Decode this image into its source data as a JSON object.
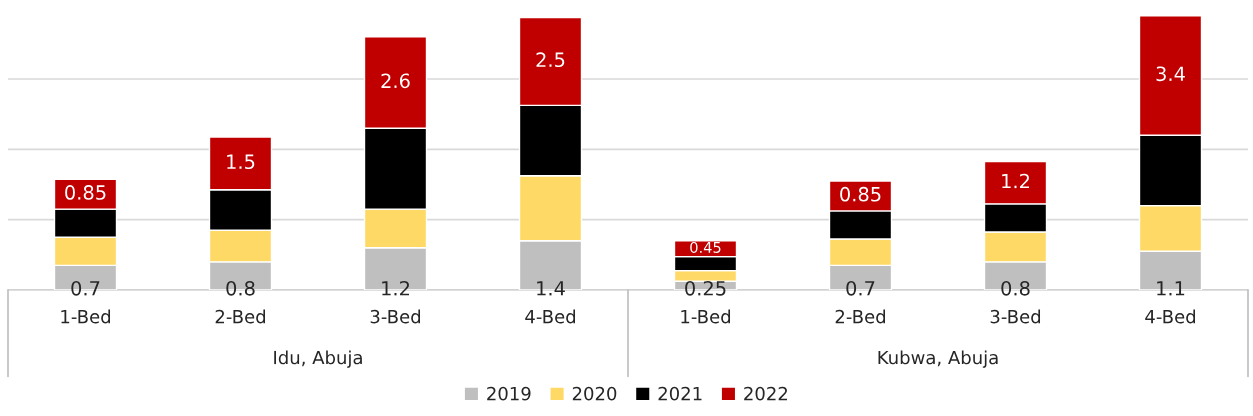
{
  "chart_data": {
    "type": "bar",
    "stacked": true,
    "categories": [
      "1-Bed",
      "2-Bed",
      "3-Bed",
      "4-Bed",
      "1-Bed",
      "2-Bed",
      "3-Bed",
      "4-Bed"
    ],
    "series": [
      {
        "name": "2019",
        "color": "#bfbfbf",
        "values": [
          0.7,
          0.8,
          1.2,
          1.4,
          0.25,
          0.7,
          0.8,
          1.1
        ],
        "value_labels": [
          "0.7",
          "0.8",
          "1.2",
          "1.4",
          "0.25",
          "0.7",
          "0.8",
          "1.1"
        ]
      },
      {
        "name": "2020",
        "color": "#ffd966",
        "values": [
          0.8,
          0.9,
          1.1,
          1.85,
          0.3,
          0.75,
          0.85,
          1.3
        ]
      },
      {
        "name": "2021",
        "color": "#000000",
        "values": [
          0.8,
          1.15,
          2.3,
          2.0,
          0.4,
          0.8,
          0.8,
          2.0
        ]
      },
      {
        "name": "2022",
        "color": "#c00000",
        "values": [
          0.85,
          1.5,
          2.6,
          2.5,
          0.45,
          0.85,
          1.2,
          3.4
        ],
        "value_labels": [
          "0.85",
          "1.5",
          "2.6",
          "2.5",
          "0.45",
          "0.85",
          "1.2",
          "3.4"
        ]
      }
    ],
    "yticks": [
      {
        "value": 0,
        "label": null
      },
      {
        "value": 2,
        "label": null
      },
      {
        "value": 4,
        "label": null
      },
      {
        "value": 6,
        "label": null
      }
    ],
    "grid": "y",
    "tick_labels": "x",
    "legend": "bottom",
    "annotations": [
      "Idu, Abuja",
      "Kubwa, Abuja"
    ]
  }
}
